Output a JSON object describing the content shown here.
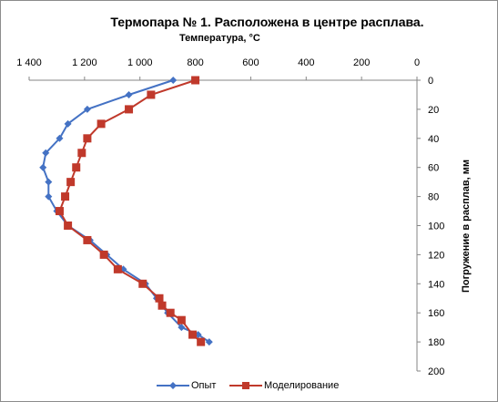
{
  "chart_data": {
    "type": "line",
    "title": "Термопара № 1. Расположена в центре расплава.",
    "xlabel": "Температура, °С",
    "ylabel": "Погружение в расплав, мм",
    "xlim": [
      1400,
      0
    ],
    "ylim": [
      0,
      200
    ],
    "x_ticks": [
      "1 400",
      "1 200",
      "1 000",
      "800",
      "600",
      "400",
      "200",
      "0"
    ],
    "y_ticks": [
      "0",
      "20",
      "40",
      "60",
      "80",
      "100",
      "120",
      "140",
      "160",
      "180",
      "200"
    ],
    "legend_position": "bottom",
    "grid": false,
    "series": [
      {
        "name": "Опыт",
        "color": "#4472c4",
        "marker": "diamond",
        "points": [
          [
            880,
            0
          ],
          [
            1040,
            10
          ],
          [
            1190,
            20
          ],
          [
            1260,
            30
          ],
          [
            1290,
            40
          ],
          [
            1340,
            50
          ],
          [
            1350,
            60
          ],
          [
            1330,
            70
          ],
          [
            1330,
            80
          ],
          [
            1300,
            90
          ],
          [
            1260,
            100
          ],
          [
            1180,
            110
          ],
          [
            1120,
            120
          ],
          [
            1060,
            130
          ],
          [
            980,
            140
          ],
          [
            940,
            150
          ],
          [
            900,
            160
          ],
          [
            850,
            170
          ],
          [
            790,
            175
          ],
          [
            750,
            180
          ]
        ]
      },
      {
        "name": "Моделирование",
        "color": "#c0392b",
        "marker": "square",
        "points": [
          [
            800,
            0
          ],
          [
            960,
            10
          ],
          [
            1040,
            20
          ],
          [
            1140,
            30
          ],
          [
            1190,
            40
          ],
          [
            1210,
            50
          ],
          [
            1230,
            60
          ],
          [
            1250,
            70
          ],
          [
            1270,
            80
          ],
          [
            1290,
            90
          ],
          [
            1260,
            100
          ],
          [
            1190,
            110
          ],
          [
            1130,
            120
          ],
          [
            1080,
            130
          ],
          [
            990,
            140
          ],
          [
            930,
            150
          ],
          [
            920,
            155
          ],
          [
            890,
            160
          ],
          [
            850,
            165
          ],
          [
            810,
            175
          ],
          [
            780,
            180
          ]
        ]
      }
    ]
  }
}
